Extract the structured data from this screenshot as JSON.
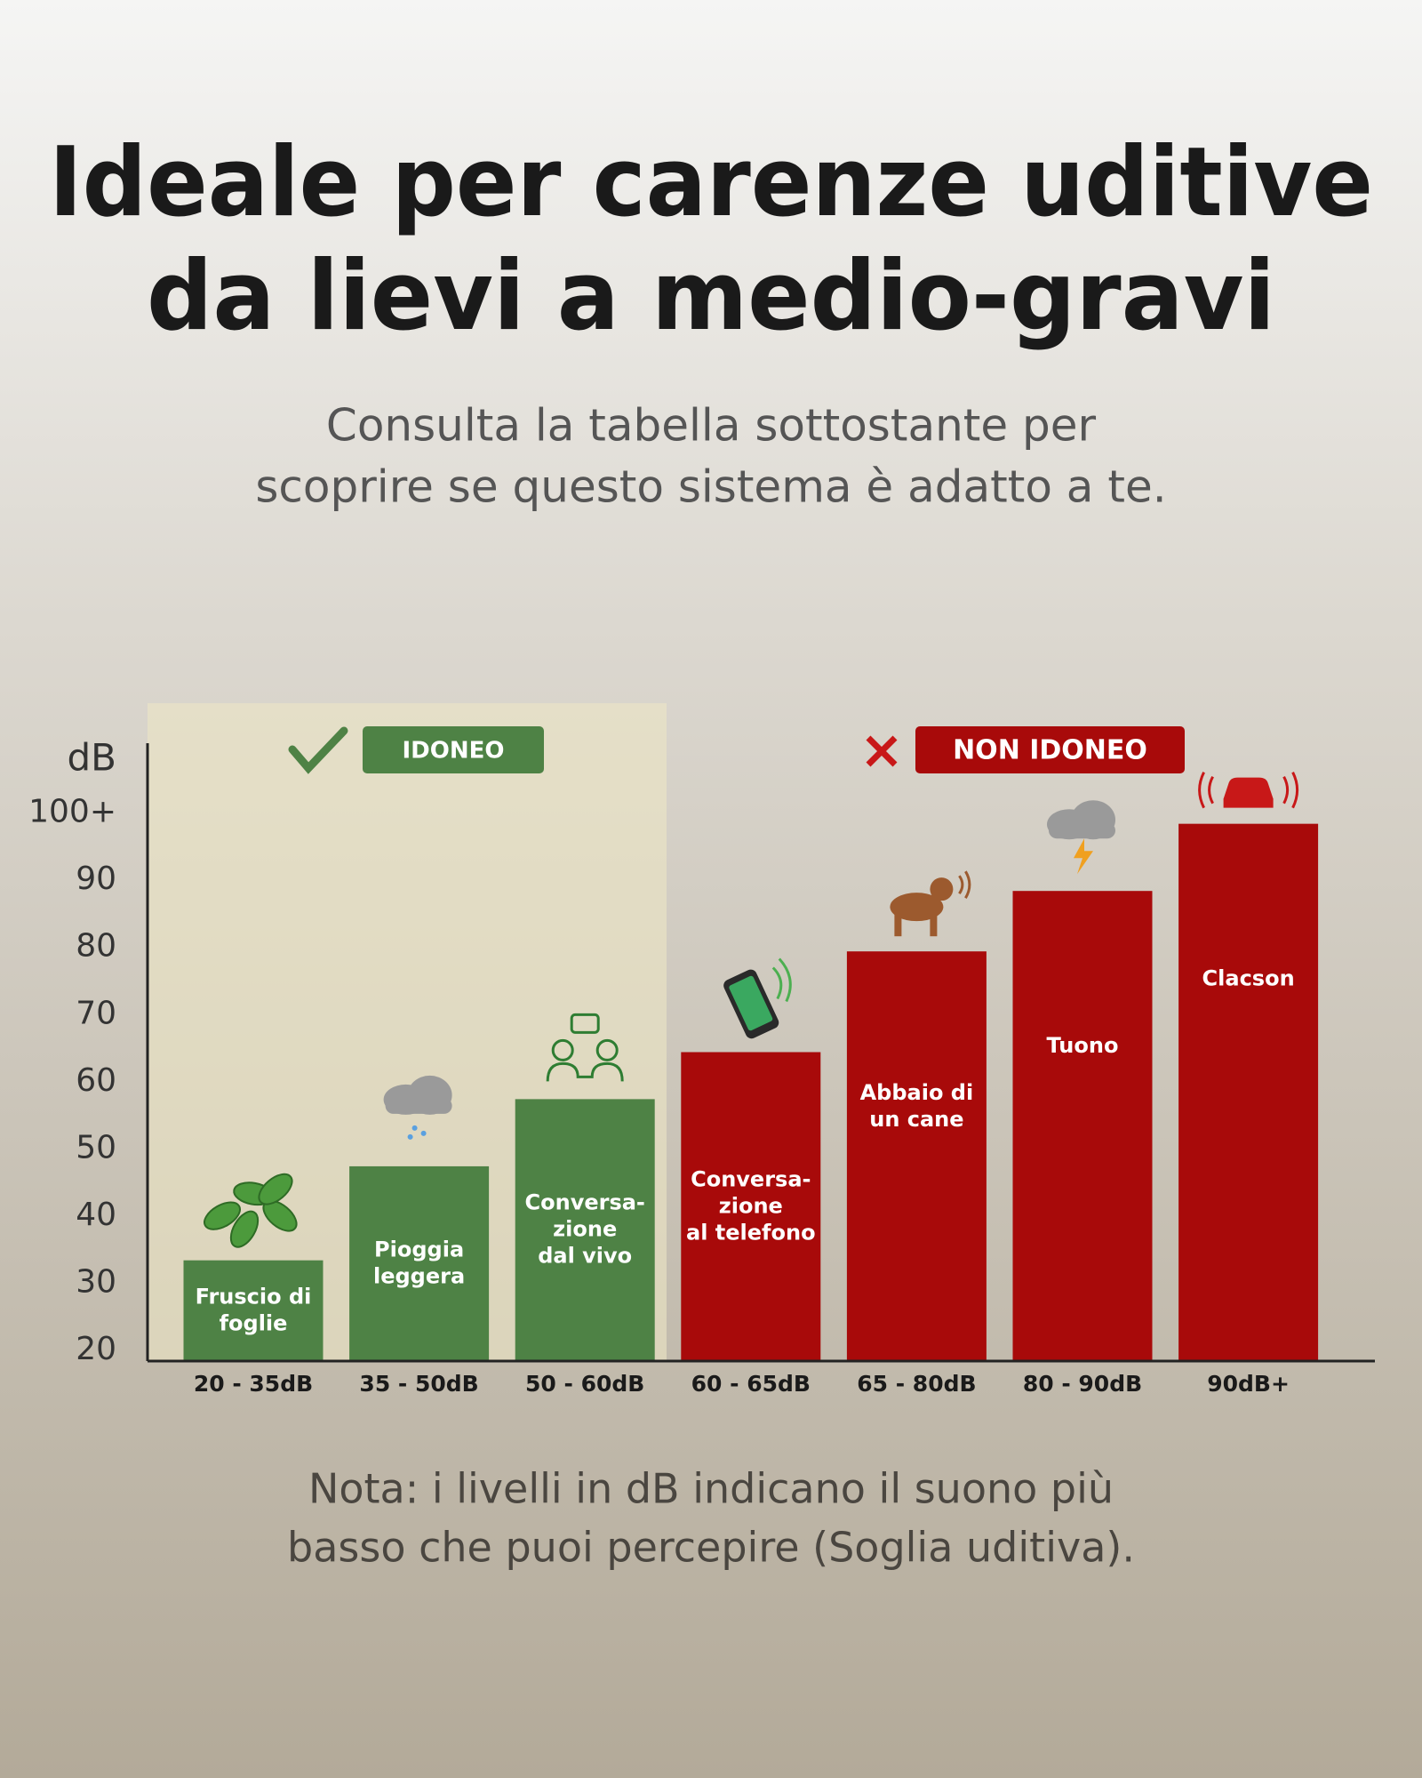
{
  "chart_data": {
    "type": "bar",
    "title": [
      "Ideale per carenze uditive",
      "da lievi a medio-gravi"
    ],
    "subtitle": [
      "Consulta la tabella sottostante per",
      "scoprire se questo sistema è adatto a te."
    ],
    "y_label": "dB",
    "categories": [
      "20 - 35dB",
      "35 - 50dB",
      "50 - 60dB",
      "60 - 65dB",
      "65 - 80dB",
      "80 - 90dB",
      "90dB+"
    ],
    "bar_labels": [
      [
        "Fruscio di",
        "foglie"
      ],
      [
        "Pioggia",
        "leggera"
      ],
      [
        "Conversa-",
        "zione",
        "dal vivo"
      ],
      [
        "Conversa-",
        "zione",
        "al telefono"
      ],
      [
        "Abbaio di",
        "un cane"
      ],
      [
        "Tuono"
      ],
      [
        "Clacson"
      ]
    ],
    "series": [
      {
        "name": "IDONEO",
        "color": "#4e8245",
        "values": [
          35,
          49,
          59,
          null,
          null,
          null,
          null
        ]
      },
      {
        "name": "NON IDONEO",
        "color": "#a80a0a",
        "values": [
          null,
          null,
          null,
          66,
          81,
          90,
          100
        ]
      }
    ],
    "ylim": [
      20,
      112
    ],
    "yticks": [
      20,
      30,
      40,
      50,
      60,
      70,
      80,
      90,
      {
        "value": 100,
        "label": "100+"
      }
    ],
    "note": [
      "Nota: i livelli in dB indicano il suono più",
      "basso che puoi percepire (Soglia uditiva)."
    ]
  }
}
